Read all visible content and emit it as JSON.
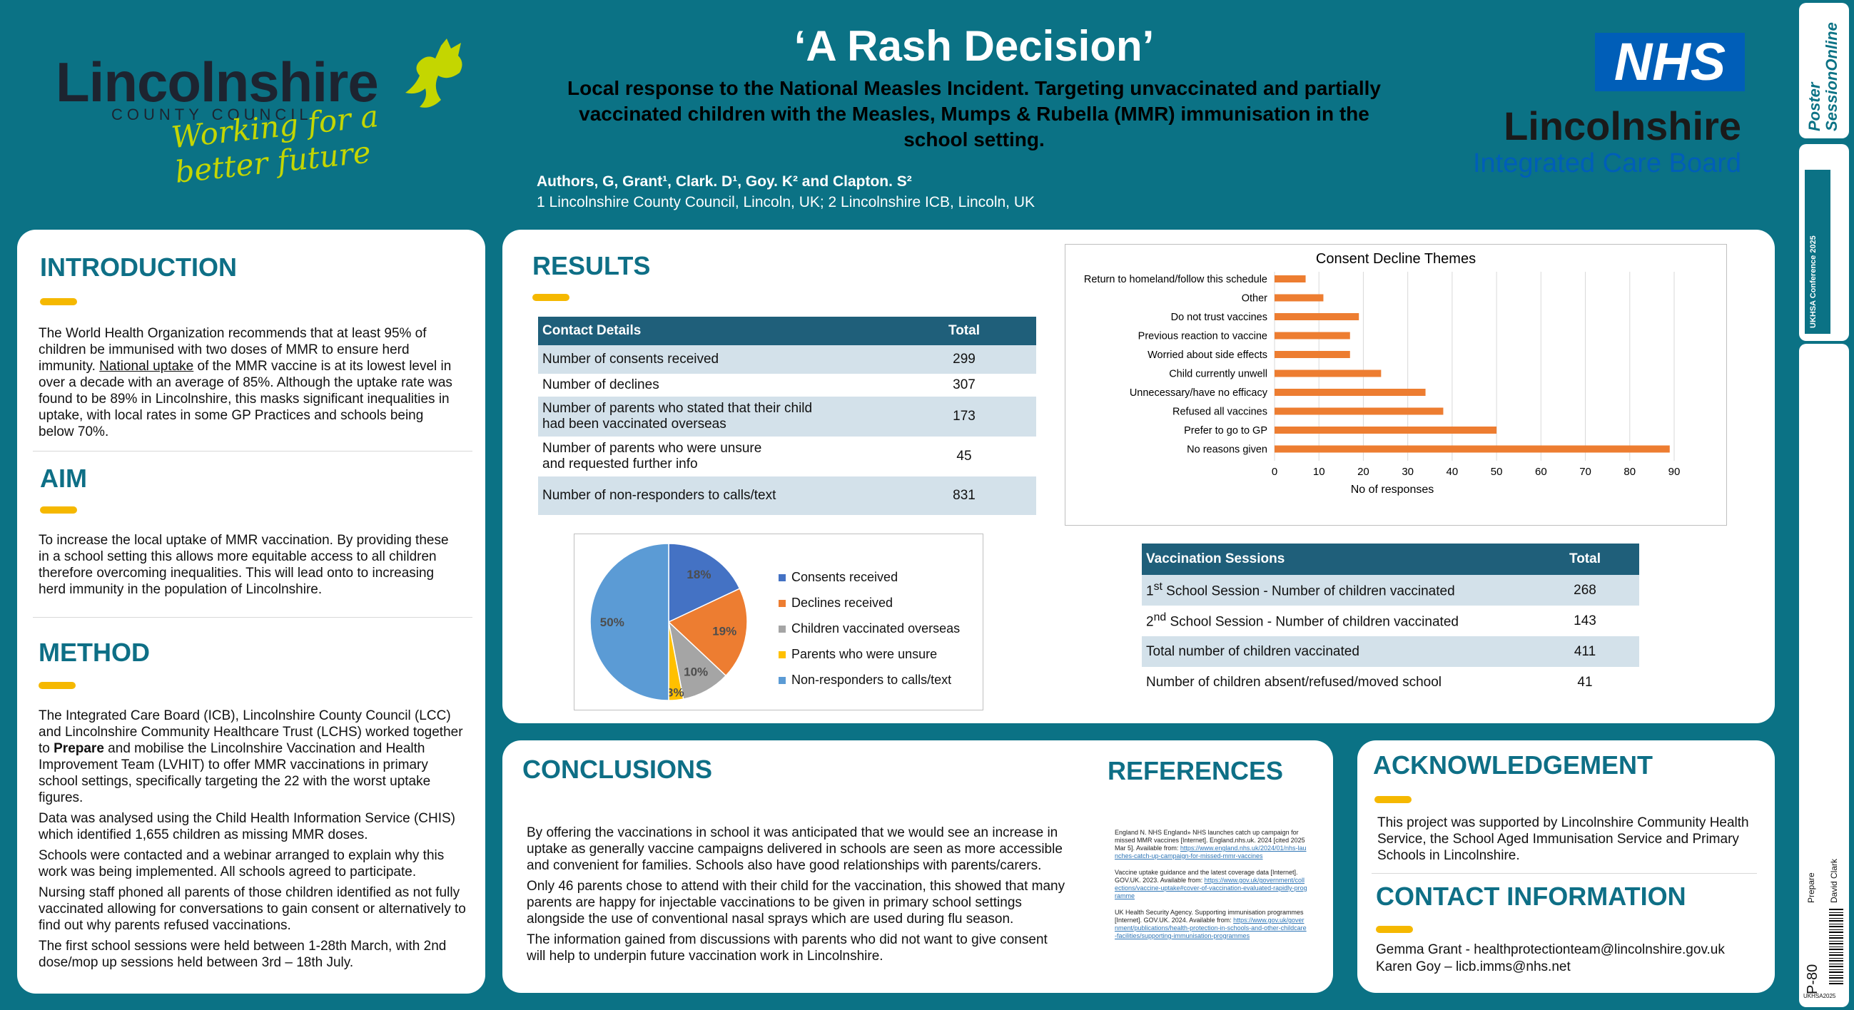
{
  "header": {
    "title": "‘A Rash Decision’",
    "subtitle": "Local response to the National Measles Incident. Targeting unvaccinated and partially vaccinated children with the Measles, Mumps & Rubella (MMR) immunisation in the school setting.",
    "authors": "Authors,  G, Grant¹, Clark. D¹, Goy. K² and Clapton. S²",
    "affiliations": "1 Lincolnshire County Council, Lincoln, UK; 2 Lincolnshire ICB, Lincoln, UK",
    "lcc_logo": {
      "name": "Lincolnshire",
      "sub": "COUNTY COUNCIL",
      "tagline": "Working for a better future"
    },
    "nhs_logo": {
      "badge": "NHS",
      "name": "Lincolnshire",
      "sub": "Integrated Care Board"
    }
  },
  "introduction": {
    "heading": "INTRODUCTION",
    "text_before": "The World Health Organization recommends that at least 95% of children be immunised with two doses of MMR to ensure herd immunity. ",
    "link": "National uptake",
    "text_after": " of the MMR vaccine is at its lowest level in over a decade with an average of 85%. Although the uptake rate was found to be 89% in Lincolnshire, this masks significant inequalities in uptake, with local rates in some GP Practices and schools being below 70%."
  },
  "aim": {
    "heading": "AIM",
    "text": "To increase the local uptake of MMR vaccination. By providing these in a school setting this allows more equitable access to all children therefore overcoming inequalities. This will lead onto to increasing herd immunity in the population of Lincolnshire."
  },
  "method": {
    "heading": "METHOD",
    "p1_before": "The Integrated Care Board (ICB), Lincolnshire County Council (LCC) and Lincolnshire Community Healthcare Trust (LCHS) worked together to ",
    "p1_bold": "Prepare",
    "p1_after": " and mobilise the Lincolnshire Vaccination and Health Improvement Team (LVHIT) to offer MMR vaccinations in primary school settings, specifically targeting the 22 with the worst uptake figures.",
    "p2": "Data was analysed using the Child Health Information Service (CHIS) which identified 1,655 children as missing MMR doses.",
    "p3": "Schools were contacted and a webinar arranged to explain why this work was being implemented. All schools agreed to participate.",
    "p4": "Nursing staff phoned all parents of those children identified as not fully vaccinated allowing for conversations to gain consent or alternatively to find out why parents refused vaccinations.",
    "p5": "The first school sessions were held between 1-28th March, with 2nd dose/mop up sessions held between 3rd – 18th July."
  },
  "results": {
    "heading": "RESULTS",
    "contact_table": {
      "headers": [
        "Contact Details",
        "Total"
      ],
      "rows": [
        [
          "Number of consents received",
          "299"
        ],
        [
          "Number of declines",
          "307"
        ],
        [
          "Number of parents who stated that their child had been vaccinated overseas",
          "173"
        ],
        [
          "Number of parents who were unsure and requested further info",
          "45"
        ],
        [
          "Number of non-responders to calls/text",
          "831"
        ]
      ]
    },
    "sessions_table": {
      "headers": [
        "Vaccination Sessions",
        "Total"
      ],
      "rows": [
        [
          "1st School Session - Number of children vaccinated",
          "268"
        ],
        [
          "2nd School Session - Number of children vaccinated",
          "143"
        ],
        [
          "Total number of children vaccinated",
          "411"
        ],
        [
          "Number of children absent/refused/moved school",
          "41"
        ]
      ]
    }
  },
  "chart_data": [
    {
      "type": "bar",
      "orientation": "horizontal",
      "title": "Consent Decline Themes",
      "xlabel": "No of responses",
      "ylabel": "",
      "xlim": [
        0,
        90
      ],
      "ticks": [
        "0",
        "10",
        "20",
        "30",
        "40",
        "50",
        "60",
        "70",
        "80",
        "90"
      ],
      "grid": true,
      "color": "#ed7d31",
      "categories": [
        "Return to homeland/follow this schedule",
        "Other",
        "Do not trust vaccines",
        "Previous reaction to vaccine",
        "Worried about side effects",
        "Child currently unwell",
        "Unnecessary/have no efficacy",
        "Refused all vaccines",
        "Prefer to go to GP",
        "No reasons given"
      ],
      "values": [
        7,
        11,
        19,
        17,
        17,
        24,
        34,
        38,
        50,
        89
      ]
    },
    {
      "type": "pie",
      "legend": "right",
      "slices": [
        {
          "label": "Consents received",
          "percent": 18,
          "color": "#4472c4",
          "text": "18%"
        },
        {
          "label": "Declines received",
          "percent": 19,
          "color": "#ed7d31",
          "text": "19%"
        },
        {
          "label": "Children vaccinated overseas",
          "percent": 10,
          "color": "#a5a5a5",
          "text": "10%"
        },
        {
          "label": "Parents who were unsure",
          "percent": 3,
          "color": "#ffc000",
          "text": "3%"
        },
        {
          "label": "Non-responders to calls/text",
          "percent": 50,
          "color": "#5b9bd5",
          "text": "50%"
        }
      ]
    }
  ],
  "conclusions": {
    "heading": "CONCLUSIONS",
    "p1": "By offering the vaccinations in school it was anticipated that we would see an increase in uptake as generally vaccine campaigns delivered in schools are seen as more accessible and convenient for families. Schools also have good relationships with parents/carers.",
    "p2": "Only 46 parents chose to attend with their child for the vaccination, this showed that many parents are happy for injectable vaccinations to be given in primary school settings alongside the use of conventional nasal sprays which are used during flu season.",
    "p3": "The information gained from discussions with parents who did not want to give consent will help to underpin future vaccination work in Lincolnshire."
  },
  "references": {
    "heading": "REFERENCES",
    "r1_text": "England N. NHS England» NHS launches catch up campaign for missed MMR vaccines [Internet]. England.nhs.uk. 2024 [cited 2025 Mar 5]. Available from: ",
    "r1_link": "https://www.england.nhs.uk/2024/01/nhs-launches-catch-up-campaign-for-missed-mmr-vaccines",
    "r2_text": "Vaccine uptake guidance and the latest coverage data [Internet]. GOV.UK. 2023. Available from: ",
    "r2_link": "https://www.gov.uk/government/collections/vaccine-uptake#cover-of-vaccination-evaluated-rapidly-programme",
    "r3_text": "UK Health Security Agency. Supporting immunisation programmes [Internet]. GOV.UK. 2024. Available from: ",
    "r3_link": "https://www.gov.uk/government/publications/health-protection-in-schools-and-other-childcare-facilities/supporting-immunisation-programmes"
  },
  "acknowledgement": {
    "heading": "ACKNOWLEDGEMENT",
    "text": "This project was supported by Lincolnshire Community Health Service, the School Aged Immunisation Service and Primary Schools in Lincolnshire."
  },
  "contact": {
    "heading": "CONTACT INFORMATION",
    "line1": "Gemma Grant - healthprotectionteam@lincolnshire.gov.uk",
    "line2": "Karen Goy – licb.imms@nhs.net"
  },
  "sidebar": {
    "logo_line1": "Poster",
    "logo_line2": "SessionOnline",
    "conference": "UKHSA Conference 2025",
    "theme": "Prepare",
    "presenter": "David Clark",
    "poster_id": "P-80",
    "code": "UKHSA2025"
  }
}
